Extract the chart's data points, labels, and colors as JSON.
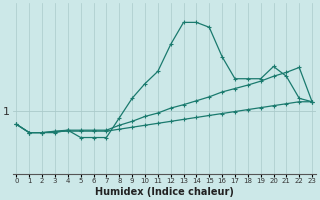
{
  "xlabel": "Humidex (Indice chaleur)",
  "background_color": "#cce8e8",
  "line_color": "#1a7a6e",
  "grid_color": "#aacaca",
  "x_ticks": [
    0,
    1,
    2,
    3,
    4,
    5,
    6,
    7,
    8,
    9,
    10,
    11,
    12,
    13,
    14,
    15,
    16,
    17,
    18,
    19,
    20,
    21,
    22,
    23
  ],
  "y_tick_label": "1",
  "y_tick_val": 1.0,
  "xlim": [
    -0.3,
    23.3
  ],
  "ylim": [
    -0.3,
    3.2
  ],
  "series": [
    {
      "x": [
        0,
        1,
        2,
        3,
        4,
        5,
        6,
        7,
        8,
        9,
        10,
        11,
        12,
        13,
        14,
        15,
        16,
        17,
        18,
        19,
        20,
        21,
        22,
        23
      ],
      "y": [
        0.72,
        0.55,
        0.55,
        0.55,
        0.6,
        0.45,
        0.45,
        0.45,
        0.85,
        1.25,
        1.55,
        1.8,
        2.35,
        2.8,
        2.8,
        2.7,
        2.1,
        1.65,
        1.65,
        1.65,
        1.9,
        1.7,
        1.25,
        1.18
      ]
    },
    {
      "x": [
        0,
        1,
        2,
        3,
        4,
        5,
        6,
        7,
        8,
        9,
        10,
        11,
        12,
        13,
        14,
        15,
        16,
        17,
        18,
        19,
        20,
        21,
        22,
        23
      ],
      "y": [
        0.72,
        0.55,
        0.55,
        0.58,
        0.6,
        0.6,
        0.6,
        0.6,
        0.7,
        0.78,
        0.88,
        0.95,
        1.05,
        1.12,
        1.2,
        1.28,
        1.38,
        1.45,
        1.52,
        1.6,
        1.7,
        1.78,
        1.88,
        1.18
      ]
    },
    {
      "x": [
        0,
        1,
        2,
        3,
        4,
        5,
        6,
        7,
        8,
        9,
        10,
        11,
        12,
        13,
        14,
        15,
        16,
        17,
        18,
        19,
        20,
        21,
        22,
        23
      ],
      "y": [
        0.72,
        0.55,
        0.55,
        0.57,
        0.58,
        0.58,
        0.58,
        0.58,
        0.62,
        0.66,
        0.7,
        0.74,
        0.78,
        0.82,
        0.86,
        0.9,
        0.94,
        0.98,
        1.02,
        1.06,
        1.1,
        1.14,
        1.18,
        1.18
      ]
    }
  ]
}
